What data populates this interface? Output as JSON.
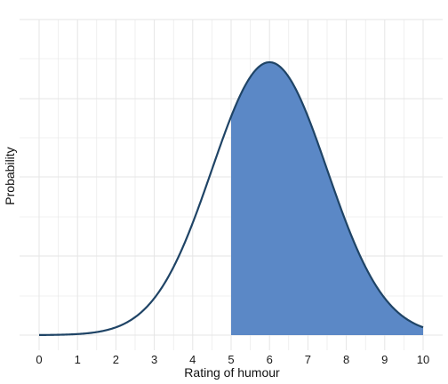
{
  "chart_data": {
    "type": "area",
    "distribution": "normal",
    "mean": 6,
    "sd": 1.5,
    "xlim": [
      0,
      10
    ],
    "x_ticks": [
      0,
      1,
      2,
      3,
      4,
      5,
      6,
      7,
      8,
      9,
      10
    ],
    "xlabel": "Rating of humour",
    "ylabel": "Probability",
    "y_tick_labels": false,
    "shaded_region": {
      "from": 5,
      "to": 10
    },
    "grid": true,
    "colors": {
      "line": "#1f4466",
      "fill": "#5b88c6",
      "grid": "#e5e5e5"
    }
  }
}
